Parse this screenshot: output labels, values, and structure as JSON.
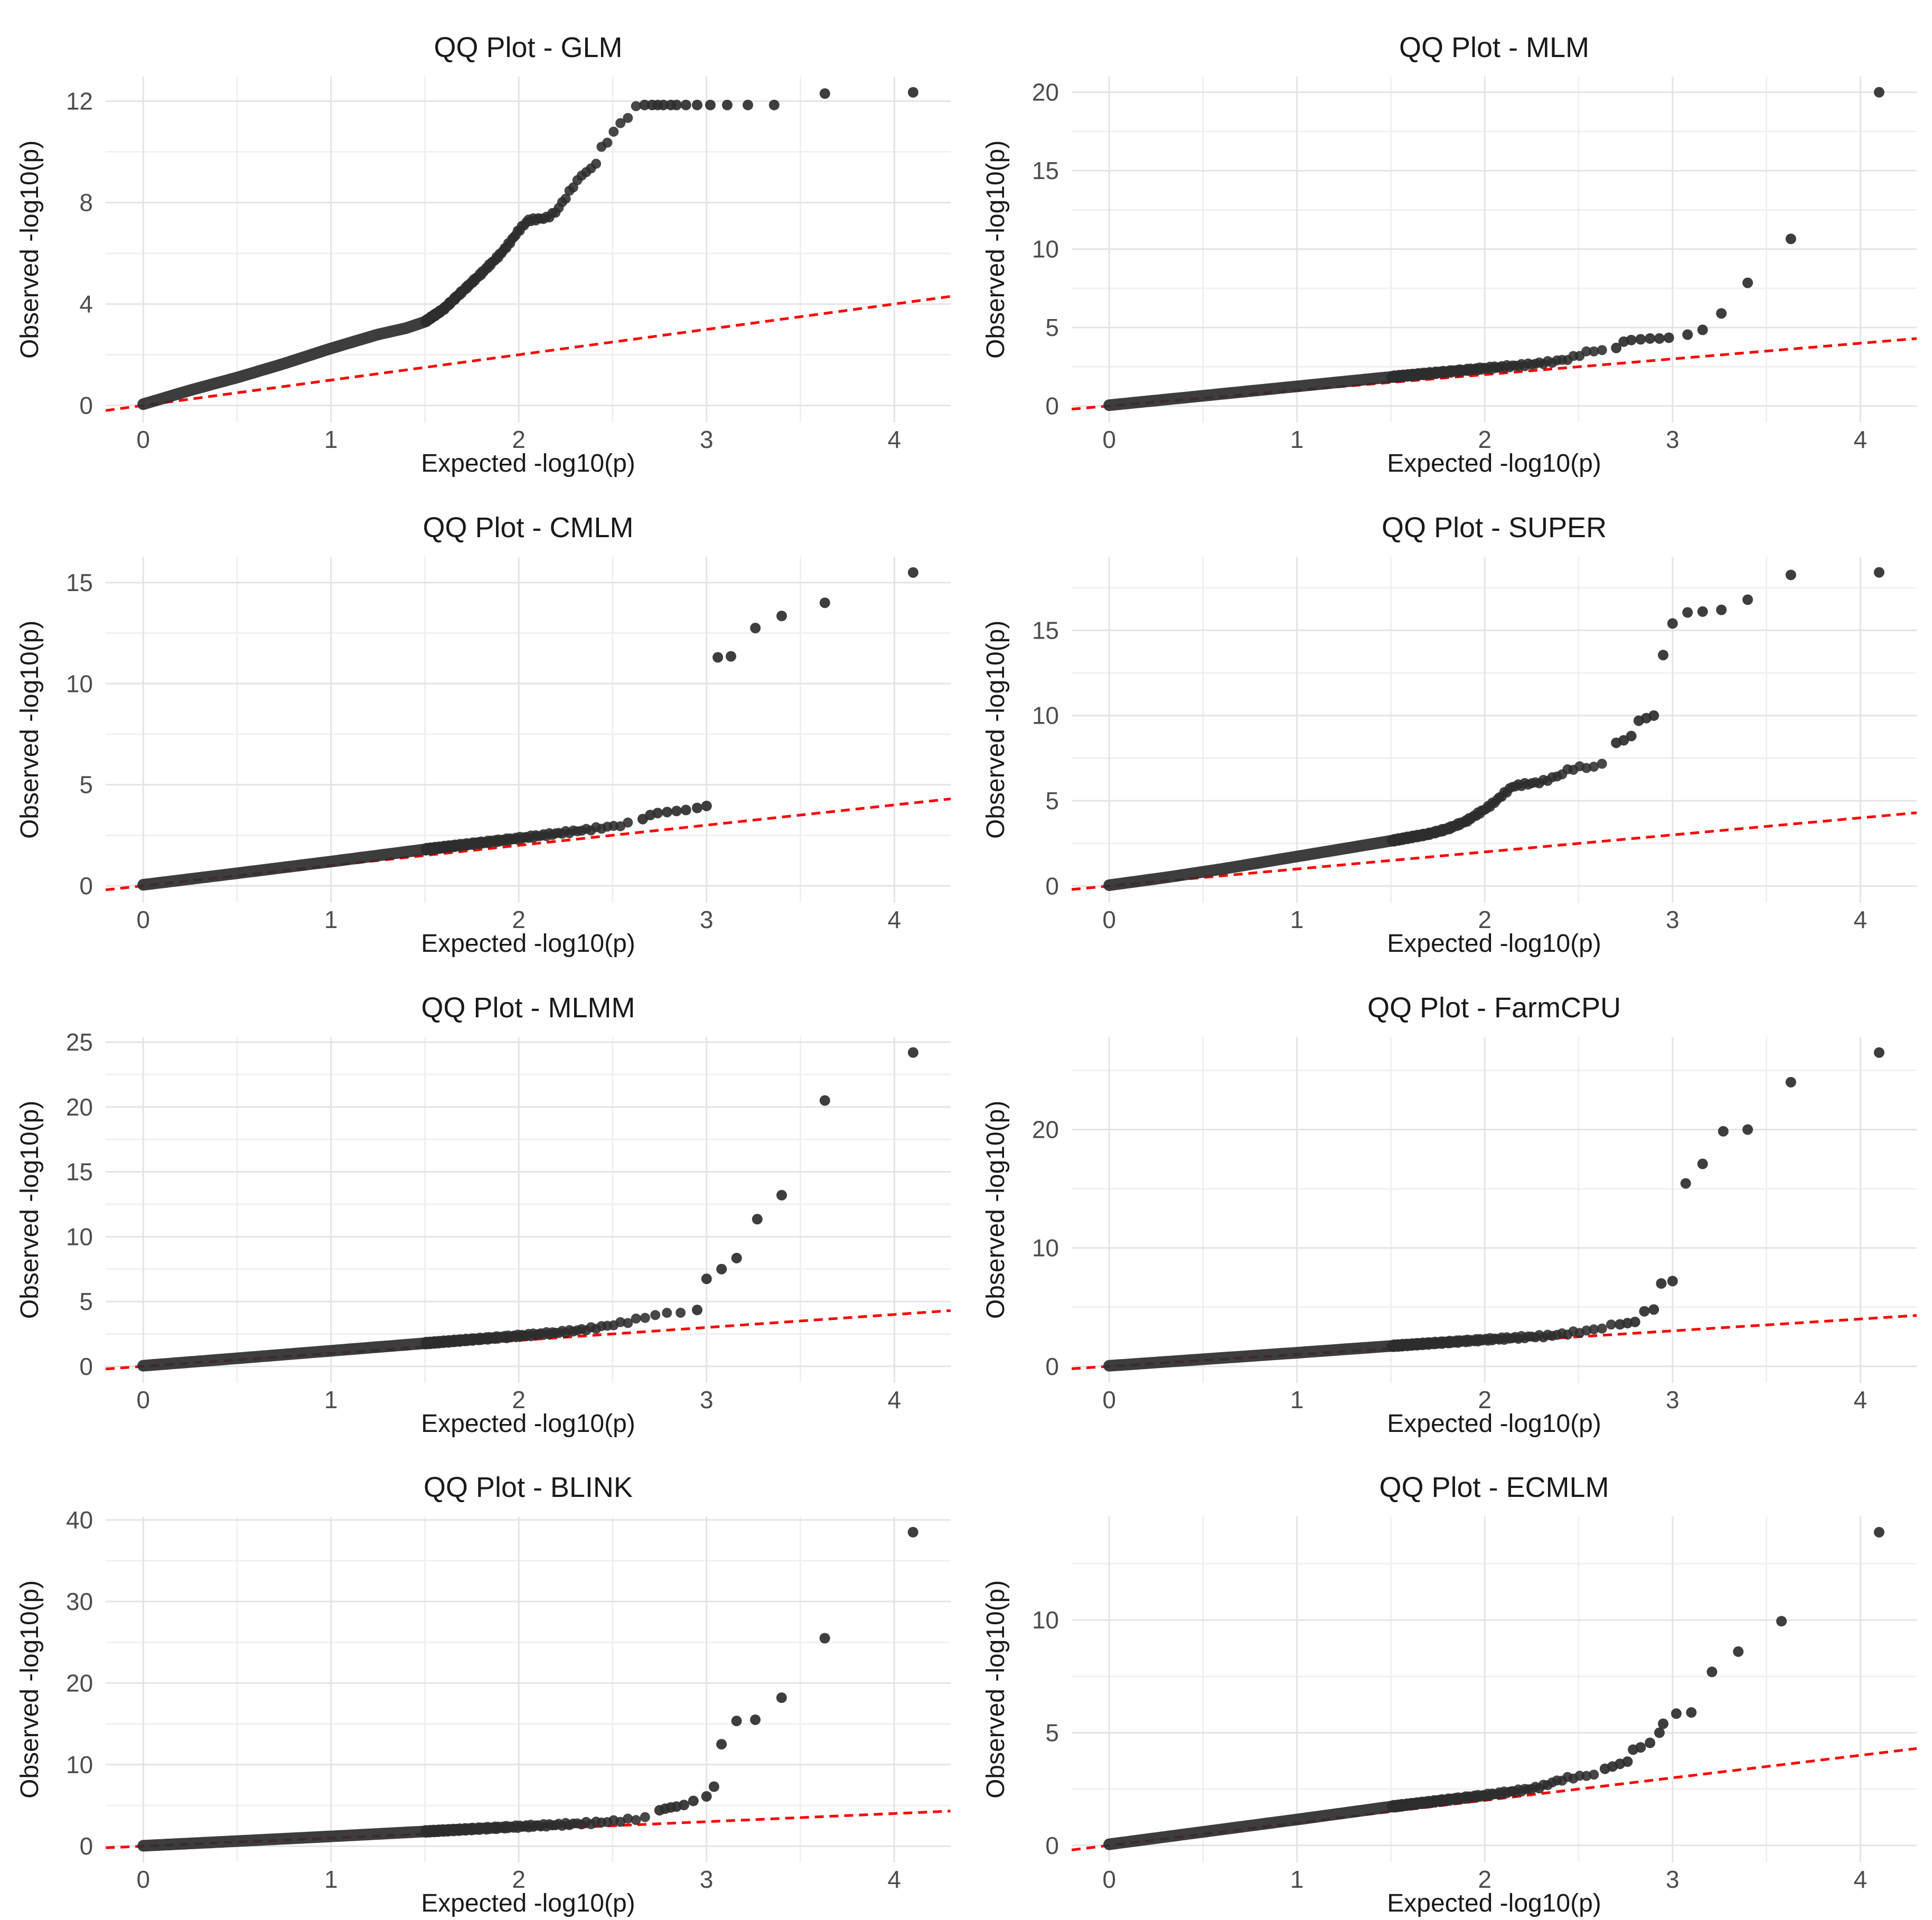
{
  "figure": {
    "background": "#ffffff",
    "description": "Grid of eight GWAS QQ plots comparing models"
  },
  "colors": {
    "point": "#2e2e2e",
    "reference_line": "#ff0000",
    "grid_major": "#e4e4e4",
    "grid_minor": "#f0f0f0",
    "tick_text": "#4d4d4d",
    "title_text": "#1a1a1a",
    "axis_label_text": "#1a1a1a"
  },
  "chart_data": [
    {
      "type": "scatter",
      "model": "GLM",
      "title": "QQ Plot - GLM",
      "xlabel": "Expected -log10(p)",
      "ylabel": "Observed -log10(p)",
      "legend": "none",
      "grid": true,
      "reference_line": "y = x (red dashed)",
      "xlim": [
        -0.2,
        4.3
      ],
      "ylim": [
        -0.67,
        12.97
      ],
      "x_ticks": [
        0,
        1,
        2,
        3,
        4
      ],
      "x_minor": [
        0.5,
        1.5,
        2.5,
        3.5
      ],
      "y_ticks": [
        0,
        4,
        8,
        12
      ],
      "y_minor": [
        2,
        6,
        10
      ],
      "n_quantile_points": 4000,
      "dense_curve": [
        [
          0,
          0.05
        ],
        [
          0.25,
          0.6
        ],
        [
          0.5,
          1.1
        ],
        [
          0.75,
          1.65
        ],
        [
          1.0,
          2.25
        ],
        [
          1.25,
          2.8
        ],
        [
          1.4,
          3.05
        ],
        [
          1.5,
          3.3
        ],
        [
          1.6,
          3.8
        ],
        [
          1.7,
          4.5
        ],
        [
          1.8,
          5.2
        ],
        [
          1.9,
          5.95
        ],
        [
          1.95,
          6.4
        ],
        [
          2.0,
          6.9
        ],
        [
          2.05,
          7.3
        ],
        [
          2.15,
          7.4
        ],
        [
          2.2,
          7.65
        ],
        [
          2.25,
          8.2
        ],
        [
          2.3,
          8.75
        ],
        [
          2.35,
          9.2
        ],
        [
          2.4,
          9.35
        ],
        [
          2.44,
          10.15
        ],
        [
          2.48,
          10.45
        ],
        [
          2.52,
          11.0
        ],
        [
          2.56,
          11.2
        ],
        [
          2.6,
          11.55
        ],
        [
          2.63,
          11.8
        ]
      ],
      "outlier_points": [
        [
          2.67,
          11.85
        ],
        [
          2.71,
          11.85
        ],
        [
          2.74,
          11.85
        ],
        [
          2.77,
          11.85
        ],
        [
          2.81,
          11.85
        ],
        [
          2.84,
          11.85
        ],
        [
          2.89,
          11.85
        ],
        [
          2.95,
          11.85
        ],
        [
          3.02,
          11.85
        ],
        [
          3.11,
          11.85
        ],
        [
          3.22,
          11.85
        ],
        [
          3.36,
          11.85
        ],
        [
          3.63,
          12.3
        ],
        [
          4.1,
          12.35
        ]
      ]
    },
    {
      "type": "scatter",
      "model": "MLM",
      "title": "QQ Plot - MLM",
      "xlabel": "Expected -log10(p)",
      "ylabel": "Observed -log10(p)",
      "legend": "none",
      "grid": true,
      "reference_line": "y = x (red dashed)",
      "xlim": [
        -0.2,
        4.3
      ],
      "ylim": [
        -1.05,
        21.0
      ],
      "x_ticks": [
        0,
        1,
        2,
        3,
        4
      ],
      "x_minor": [
        0.5,
        1.5,
        2.5,
        3.5
      ],
      "y_ticks": [
        0,
        5,
        10,
        15,
        20
      ],
      "y_minor": [
        2.5,
        7.5,
        12.5,
        17.5
      ],
      "n_quantile_points": 4000,
      "dense_curve": [
        [
          0,
          0.05
        ],
        [
          0.5,
          0.65
        ],
        [
          1.0,
          1.25
        ],
        [
          1.5,
          1.85
        ],
        [
          2.0,
          2.4
        ],
        [
          2.2,
          2.6
        ],
        [
          2.35,
          2.8
        ],
        [
          2.45,
          3.0
        ],
        [
          2.5,
          3.25
        ],
        [
          2.55,
          3.45
        ],
        [
          2.6,
          3.55
        ],
        [
          2.65,
          3.6
        ]
      ],
      "outlier_points": [
        [
          2.7,
          3.7
        ],
        [
          2.74,
          4.1
        ],
        [
          2.78,
          4.2
        ],
        [
          2.83,
          4.25
        ],
        [
          2.88,
          4.3
        ],
        [
          2.93,
          4.3
        ],
        [
          2.98,
          4.35
        ],
        [
          3.08,
          4.55
        ],
        [
          3.16,
          4.85
        ],
        [
          3.26,
          5.9
        ],
        [
          3.4,
          7.85
        ],
        [
          3.63,
          10.65
        ],
        [
          4.1,
          20.0
        ]
      ]
    },
    {
      "type": "scatter",
      "model": "CMLM",
      "title": "QQ Plot - CMLM",
      "xlabel": "Expected -log10(p)",
      "ylabel": "Observed -log10(p)",
      "legend": "none",
      "grid": true,
      "reference_line": "y = x (red dashed)",
      "xlim": [
        -0.2,
        4.3
      ],
      "ylim": [
        -0.83,
        16.28
      ],
      "x_ticks": [
        0,
        1,
        2,
        3,
        4
      ],
      "x_minor": [
        0.5,
        1.5,
        2.5,
        3.5
      ],
      "y_ticks": [
        0,
        5,
        10,
        15
      ],
      "y_minor": [
        2.5,
        7.5,
        12.5
      ],
      "n_quantile_points": 4000,
      "dense_curve": [
        [
          0,
          0.05
        ],
        [
          0.5,
          0.62
        ],
        [
          1.0,
          1.2
        ],
        [
          1.5,
          1.8
        ],
        [
          2.0,
          2.35
        ],
        [
          2.3,
          2.7
        ],
        [
          2.45,
          2.88
        ],
        [
          2.55,
          3.0
        ],
        [
          2.62,
          3.15
        ]
      ],
      "outlier_points": [
        [
          2.66,
          3.3
        ],
        [
          2.7,
          3.5
        ],
        [
          2.74,
          3.6
        ],
        [
          2.79,
          3.65
        ],
        [
          2.84,
          3.7
        ],
        [
          2.89,
          3.75
        ],
        [
          2.95,
          3.85
        ],
        [
          3.0,
          3.95
        ],
        [
          3.06,
          11.3
        ],
        [
          3.13,
          11.35
        ],
        [
          3.26,
          12.75
        ],
        [
          3.4,
          13.35
        ],
        [
          3.63,
          14.0
        ],
        [
          4.1,
          15.5
        ]
      ]
    },
    {
      "type": "scatter",
      "model": "SUPER",
      "title": "QQ Plot - SUPER",
      "xlabel": "Expected -log10(p)",
      "ylabel": "Observed -log10(p)",
      "legend": "none",
      "grid": true,
      "reference_line": "y = x (red dashed)",
      "xlim": [
        -0.2,
        4.3
      ],
      "ylim": [
        -0.97,
        19.32
      ],
      "x_ticks": [
        0,
        1,
        2,
        3,
        4
      ],
      "x_minor": [
        0.5,
        1.5,
        2.5,
        3.5
      ],
      "y_ticks": [
        0,
        5,
        10,
        15
      ],
      "y_minor": [
        2.5,
        7.5,
        12.5,
        17.5
      ],
      "n_quantile_points": 4000,
      "dense_curve": [
        [
          0,
          0.05
        ],
        [
          0.3,
          0.5
        ],
        [
          0.6,
          1.0
        ],
        [
          0.9,
          1.55
        ],
        [
          1.2,
          2.1
        ],
        [
          1.5,
          2.65
        ],
        [
          1.7,
          3.05
        ],
        [
          1.8,
          3.35
        ],
        [
          1.9,
          3.8
        ],
        [
          2.0,
          4.5
        ],
        [
          2.05,
          4.9
        ],
        [
          2.1,
          5.4
        ],
        [
          2.15,
          5.85
        ],
        [
          2.2,
          5.95
        ],
        [
          2.3,
          6.1
        ],
        [
          2.4,
          6.5
        ],
        [
          2.45,
          6.85
        ],
        [
          2.5,
          6.95
        ],
        [
          2.6,
          7.0
        ],
        [
          2.65,
          7.3
        ]
      ],
      "outlier_points": [
        [
          2.7,
          8.4
        ],
        [
          2.74,
          8.55
        ],
        [
          2.78,
          8.8
        ],
        [
          2.82,
          9.7
        ],
        [
          2.86,
          9.85
        ],
        [
          2.9,
          10.0
        ],
        [
          2.95,
          13.55
        ],
        [
          3.0,
          15.4
        ],
        [
          3.08,
          16.05
        ],
        [
          3.16,
          16.1
        ],
        [
          3.26,
          16.2
        ],
        [
          3.4,
          16.8
        ],
        [
          3.63,
          18.25
        ],
        [
          4.1,
          18.4
        ]
      ]
    },
    {
      "type": "scatter",
      "model": "MLMM",
      "title": "QQ Plot - MLMM",
      "xlabel": "Expected -log10(p)",
      "ylabel": "Observed -log10(p)",
      "legend": "none",
      "grid": true,
      "reference_line": "y = x (red dashed)",
      "xlim": [
        -0.2,
        4.3
      ],
      "ylim": [
        -1.26,
        25.41
      ],
      "x_ticks": [
        0,
        1,
        2,
        3,
        4
      ],
      "x_minor": [
        0.5,
        1.5,
        2.5,
        3.5
      ],
      "y_ticks": [
        0,
        5,
        10,
        15,
        20,
        25
      ],
      "y_minor": [
        2.5,
        7.5,
        12.5,
        17.5,
        22.5
      ],
      "n_quantile_points": 4000,
      "dense_curve": [
        [
          0,
          0.05
        ],
        [
          0.5,
          0.62
        ],
        [
          1.0,
          1.2
        ],
        [
          1.5,
          1.78
        ],
        [
          2.0,
          2.35
        ],
        [
          2.2,
          2.6
        ],
        [
          2.3,
          2.75
        ],
        [
          2.4,
          2.95
        ],
        [
          2.5,
          3.2
        ],
        [
          2.6,
          3.5
        ],
        [
          2.7,
          3.9
        ],
        [
          2.75,
          4.0
        ],
        [
          2.8,
          4.1
        ],
        [
          2.85,
          4.2
        ],
        [
          2.9,
          4.3
        ]
      ],
      "outlier_points": [
        [
          2.95,
          4.35
        ],
        [
          3.0,
          6.75
        ],
        [
          3.08,
          7.5
        ],
        [
          3.16,
          8.35
        ],
        [
          3.27,
          11.35
        ],
        [
          3.4,
          13.2
        ],
        [
          3.63,
          20.5
        ],
        [
          4.1,
          24.2
        ]
      ]
    },
    {
      "type": "scatter",
      "model": "FarmCPU",
      "title": "QQ Plot - FarmCPU",
      "xlabel": "Expected -log10(p)",
      "ylabel": "Observed -log10(p)",
      "legend": "none",
      "grid": true,
      "reference_line": "y = x (red dashed)",
      "xlim": [
        -0.2,
        4.3
      ],
      "ylim": [
        -1.38,
        27.83
      ],
      "x_ticks": [
        0,
        1,
        2,
        3,
        4
      ],
      "x_minor": [
        0.5,
        1.5,
        2.5,
        3.5
      ],
      "y_ticks": [
        0,
        10,
        20
      ],
      "y_minor": [
        5,
        15,
        25
      ],
      "n_quantile_points": 4000,
      "dense_curve": [
        [
          0,
          0.05
        ],
        [
          0.5,
          0.6
        ],
        [
          1.0,
          1.15
        ],
        [
          1.5,
          1.72
        ],
        [
          2.0,
          2.25
        ],
        [
          2.2,
          2.45
        ],
        [
          2.35,
          2.6
        ],
        [
          2.45,
          2.8
        ],
        [
          2.55,
          3.0
        ],
        [
          2.62,
          3.25
        ],
        [
          2.68,
          3.45
        ]
      ],
      "outlier_points": [
        [
          2.72,
          3.55
        ],
        [
          2.76,
          3.65
        ],
        [
          2.8,
          3.75
        ],
        [
          2.85,
          4.65
        ],
        [
          2.9,
          4.8
        ],
        [
          2.94,
          7.0
        ],
        [
          3.0,
          7.2
        ],
        [
          3.07,
          15.45
        ],
        [
          3.16,
          17.1
        ],
        [
          3.27,
          19.85
        ],
        [
          3.4,
          20.0
        ],
        [
          3.63,
          24.0
        ],
        [
          4.1,
          26.5
        ]
      ]
    },
    {
      "type": "scatter",
      "model": "BLINK",
      "title": "QQ Plot - BLINK",
      "xlabel": "Expected -log10(p)",
      "ylabel": "Observed -log10(p)",
      "legend": "none",
      "grid": true,
      "reference_line": "y = x (red dashed)",
      "xlim": [
        -0.2,
        4.3
      ],
      "ylim": [
        -1.98,
        40.43
      ],
      "x_ticks": [
        0,
        1,
        2,
        3,
        4
      ],
      "x_minor": [
        0.5,
        1.5,
        2.5,
        3.5
      ],
      "y_ticks": [
        0,
        10,
        20,
        30,
        40
      ],
      "y_minor": [
        5,
        15,
        25,
        35
      ],
      "n_quantile_points": 4000,
      "dense_curve": [
        [
          0,
          0.05
        ],
        [
          0.5,
          0.62
        ],
        [
          1.0,
          1.2
        ],
        [
          1.5,
          1.8
        ],
        [
          2.0,
          2.4
        ],
        [
          2.2,
          2.62
        ],
        [
          2.35,
          2.8
        ],
        [
          2.45,
          2.95
        ],
        [
          2.55,
          3.15
        ],
        [
          2.62,
          3.3
        ],
        [
          2.68,
          3.55
        ],
        [
          2.72,
          3.8
        ]
      ],
      "outlier_points": [
        [
          2.75,
          4.4
        ],
        [
          2.78,
          4.6
        ],
        [
          2.81,
          4.75
        ],
        [
          2.84,
          4.85
        ],
        [
          2.88,
          5.05
        ],
        [
          2.93,
          5.55
        ],
        [
          3.0,
          6.1
        ],
        [
          3.04,
          7.3
        ],
        [
          3.08,
          12.5
        ],
        [
          3.16,
          15.35
        ],
        [
          3.26,
          15.5
        ],
        [
          3.4,
          18.2
        ],
        [
          3.63,
          25.5
        ],
        [
          4.1,
          38.5
        ]
      ]
    },
    {
      "type": "scatter",
      "model": "ECMLM",
      "title": "QQ Plot - ECMLM",
      "xlabel": "Expected -log10(p)",
      "ylabel": "Observed -log10(p)",
      "legend": "none",
      "grid": true,
      "reference_line": "y = x (red dashed)",
      "xlim": [
        -0.2,
        4.3
      ],
      "ylim": [
        -0.75,
        14.6
      ],
      "x_ticks": [
        0,
        1,
        2,
        3,
        4
      ],
      "x_minor": [
        0.5,
        1.5,
        2.5,
        3.5
      ],
      "y_ticks": [
        0,
        5,
        10
      ],
      "y_minor": [
        2.5,
        7.5,
        12.5
      ],
      "n_quantile_points": 4000,
      "dense_curve": [
        [
          0,
          0.05
        ],
        [
          0.5,
          0.6
        ],
        [
          1.0,
          1.15
        ],
        [
          1.5,
          1.72
        ],
        [
          1.8,
          2.02
        ],
        [
          2.0,
          2.22
        ],
        [
          2.2,
          2.45
        ],
        [
          2.3,
          2.6
        ],
        [
          2.38,
          2.85
        ],
        [
          2.45,
          3.0
        ],
        [
          2.55,
          3.1
        ],
        [
          2.6,
          3.2
        ]
      ],
      "outlier_points": [
        [
          2.64,
          3.4
        ],
        [
          2.68,
          3.5
        ],
        [
          2.72,
          3.62
        ],
        [
          2.76,
          3.72
        ],
        [
          2.79,
          4.25
        ],
        [
          2.83,
          4.35
        ],
        [
          2.88,
          4.55
        ],
        [
          2.93,
          5.0
        ],
        [
          2.95,
          5.4
        ],
        [
          3.02,
          5.85
        ],
        [
          3.1,
          5.9
        ],
        [
          3.21,
          7.7
        ],
        [
          3.35,
          8.6
        ],
        [
          3.58,
          9.95
        ],
        [
          4.1,
          13.9
        ]
      ]
    }
  ]
}
